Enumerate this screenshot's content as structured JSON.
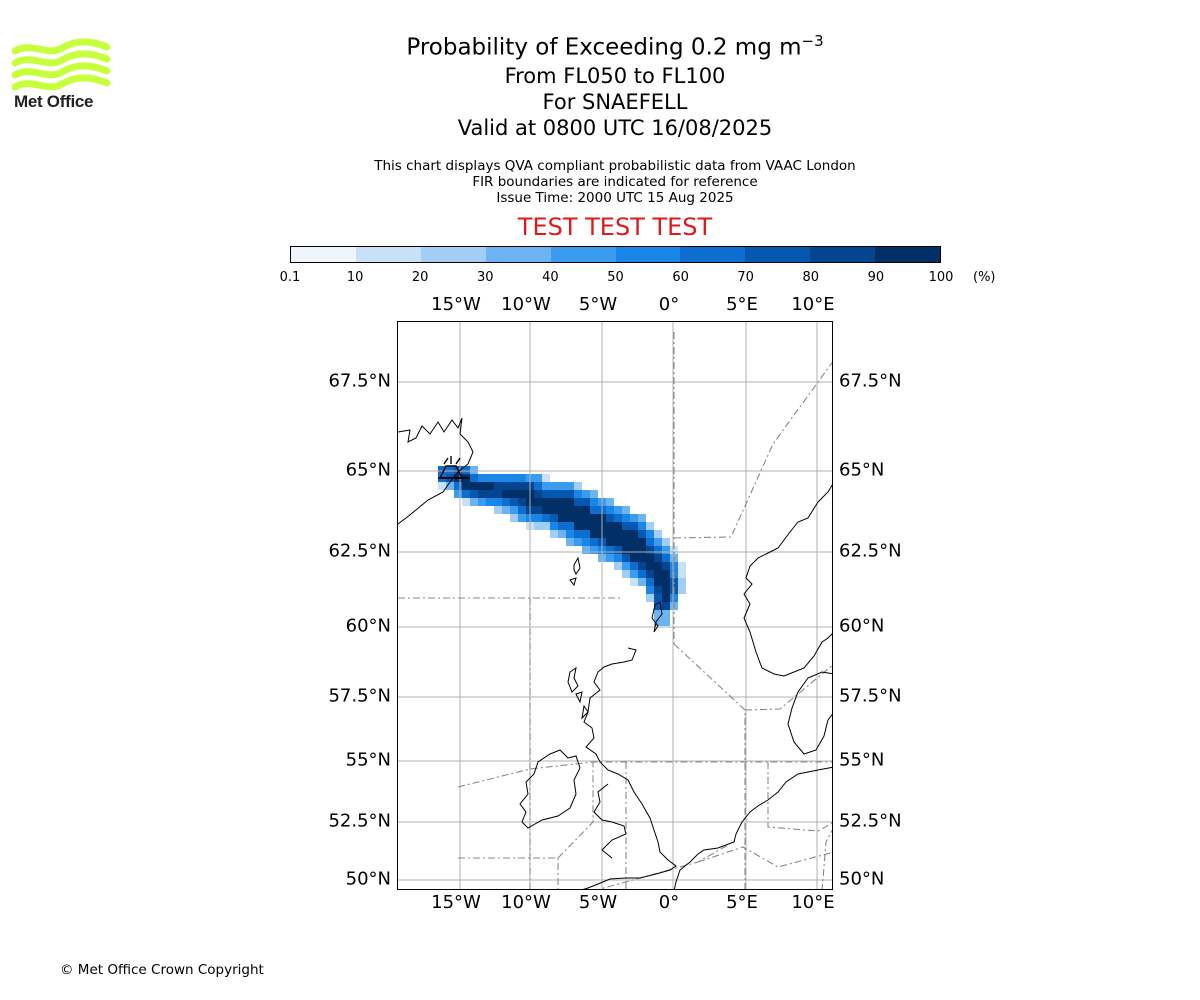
{
  "logo": {
    "name": "Met Office",
    "color": "#c8ff3c"
  },
  "title": {
    "main": "Probability of Exceeding 0.2 mg m",
    "main_exponent": "−3",
    "levels": "From FL050 to FL100",
    "volcano": "For SNAEFELL",
    "valid": "Valid at 0800 UTC 16/08/2025"
  },
  "subtitle": {
    "line1": "This chart displays QVA compliant probabilistic data from VAAC London",
    "line2": "FIR boundaries are indicated for reference",
    "line3": "Issue Time: 2000 UTC 15 Aug 2025"
  },
  "test_banner": {
    "text": "TEST TEST TEST",
    "color": "#e0191a"
  },
  "colorbar": {
    "ticks": [
      "0.1",
      "10",
      "20",
      "30",
      "40",
      "50",
      "60",
      "70",
      "80",
      "90",
      "100"
    ],
    "unit": "(%)",
    "colors": [
      "#eef5fd",
      "#c8e0f8",
      "#a2cdf5",
      "#6cb3f2",
      "#3b9cef",
      "#1a87e8",
      "#0c6fd0",
      "#0558b0",
      "#044590",
      "#022f66"
    ]
  },
  "map": {
    "lon_labels": [
      "15°W",
      "10°W",
      "5°W",
      "0°",
      "5°E",
      "10°E"
    ],
    "lat_labels": [
      "67.5°N",
      "65°N",
      "62.5°N",
      "60°N",
      "57.5°N",
      "55°N",
      "52.5°N",
      "50°N"
    ],
    "volcano_marker_icon": "volcano-icon"
  },
  "copyright": "© Met Office Crown Copyright"
}
